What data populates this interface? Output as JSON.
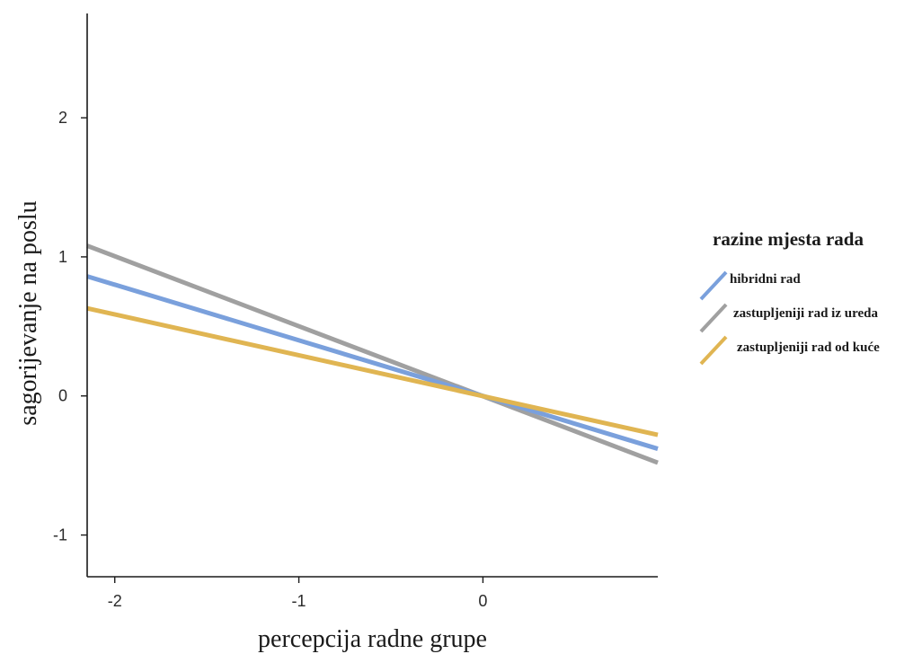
{
  "chart_data": {
    "type": "line",
    "title": "",
    "xlabel": "percepcija radne grupe",
    "ylabel": "sagorijevanje na poslu",
    "xlim": [
      -2.15,
      0.95
    ],
    "ylim": [
      -1.3,
      2.75
    ],
    "xticks": [
      -2,
      -1,
      0
    ],
    "yticks": [
      -1,
      0,
      1,
      2
    ],
    "grid": false,
    "legend": {
      "title": "razine mjesta rada",
      "placement": "right"
    },
    "series": [
      {
        "name": "zastupljeniji rad iz ureda",
        "color": "#a0a0a0",
        "x": [
          -2.15,
          0.95
        ],
        "y": [
          1.08,
          -0.48
        ]
      },
      {
        "name": "hibridni rad",
        "color": "#7aa0dc",
        "x": [
          -2.15,
          0.95
        ],
        "y": [
          0.86,
          -0.38
        ]
      },
      {
        "name": "zastupljeniji rad od kuće",
        "color": "#e0b552",
        "x": [
          -2.15,
          0.95
        ],
        "y": [
          0.63,
          -0.28
        ]
      }
    ],
    "legend_order": [
      "hibridni rad",
      "zastupljeniji rad iz ureda",
      "zastupljeniji rad od kuće"
    ]
  }
}
